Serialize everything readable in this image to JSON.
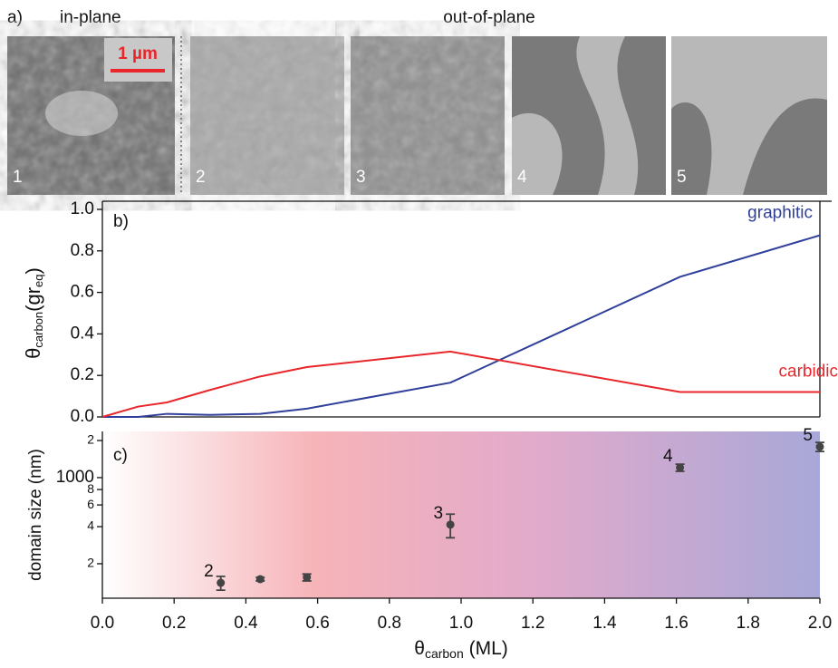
{
  "panel_a": {
    "label": "a)",
    "in_plane": "in-plane",
    "out_of_plane": "out-of-plane",
    "scale_bar": "1 µm",
    "images": [
      "1",
      "2",
      "3",
      "4",
      "5"
    ]
  },
  "chart_data": [
    {
      "type": "line",
      "panel": "b)",
      "ylabel": [
        "θ",
        "carbon",
        "(gr",
        "eq",
        ")"
      ],
      "xlim": [
        0,
        2.0
      ],
      "ylim": [
        0,
        1.0
      ],
      "yticks": [
        {
          "value": 0,
          "label": "0.0"
        },
        0.2,
        0.4,
        0.6,
        0.8,
        {
          "value": 1,
          "label": "1.0"
        }
      ],
      "x": [
        0,
        0.1,
        0.18,
        0.3,
        0.44,
        0.57,
        0.97,
        1.61,
        2.0
      ],
      "series": [
        {
          "name": "graphitic",
          "color": "#2f3f9a",
          "values": [
            0,
            0,
            0.015,
            0.01,
            0.015,
            0.04,
            0.165,
            0.675,
            0.875
          ]
        },
        {
          "name": "carbidic",
          "color": "#e8262b",
          "values": [
            0,
            0.05,
            0.07,
            0.13,
            0.195,
            0.24,
            0.315,
            0.12,
            0.12
          ]
        }
      ]
    },
    {
      "type": "scatter",
      "panel": "c)",
      "log_y": true,
      "ylabel": "domain size (nm)",
      "xlabel": [
        "θ",
        "carbon",
        " (ML)"
      ],
      "xlim": [
        0,
        2.0
      ],
      "ylim": [
        105,
        2370
      ],
      "xticks": [
        {
          "value": 0,
          "label": "0.0"
        },
        0.2,
        0.4,
        0.6,
        0.8,
        {
          "value": 1,
          "label": "1.0"
        },
        1.2,
        1.4,
        1.6,
        1.8,
        {
          "value": 2,
          "label": "2.0"
        }
      ],
      "yticks": [
        {
          "value": 200,
          "label": "2"
        },
        {
          "value": 400,
          "label": "4"
        },
        {
          "value": 600,
          "label": "6"
        },
        {
          "value": 800,
          "label": "8"
        },
        1000,
        {
          "value": 2000,
          "label": "2"
        }
      ],
      "color": "#444444",
      "x": [
        0.33,
        0.44,
        0.57,
        0.97,
        1.61,
        2.0
      ],
      "values": [
        140,
        150,
        155,
        415,
        1205,
        1780
      ],
      "errors": [
        18,
        5,
        10,
        90,
        80,
        150
      ],
      "point_labels": [
        "2",
        null,
        null,
        "3",
        "4",
        "5"
      ]
    }
  ]
}
